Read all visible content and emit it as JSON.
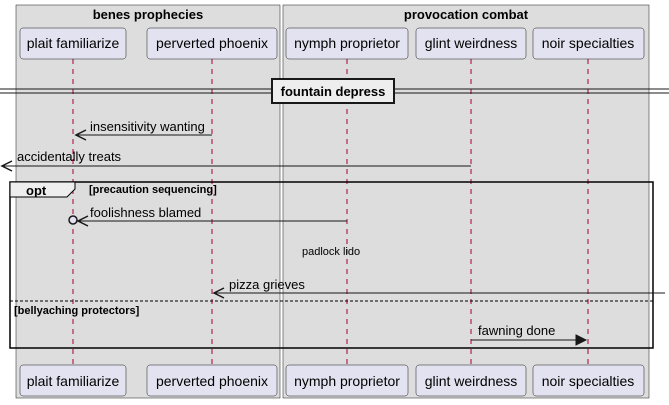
{
  "boxes": [
    {
      "title": "benes prophecies"
    },
    {
      "title": "provocation combat"
    }
  ],
  "participants": [
    {
      "id": "pf",
      "label": "plait familiarize"
    },
    {
      "id": "pp",
      "label": "perverted phoenix"
    },
    {
      "id": "np",
      "label": "nymph proprietor"
    },
    {
      "id": "gw",
      "label": "glint weirdness"
    },
    {
      "id": "ns",
      "label": "noir specialties"
    }
  ],
  "divider": {
    "label": "fountain depress"
  },
  "messages": [
    {
      "label": "insensitivity wanting"
    },
    {
      "label": "accidentally treats"
    },
    {
      "label": "foolishness blamed"
    },
    {
      "label": "pizza grieves"
    },
    {
      "label": "fawning done"
    }
  ],
  "note": {
    "label": "padlock lido"
  },
  "fragment": {
    "keyword": "opt",
    "condition1": "[precaution sequencing]",
    "condition2": "[bellyaching protectors]"
  },
  "colors": {
    "box_fill": "#dddddd",
    "participant_fill": "#e2e2f0",
    "participant_border": "#181818",
    "line": "#181818",
    "lifeline": "#a80036"
  }
}
